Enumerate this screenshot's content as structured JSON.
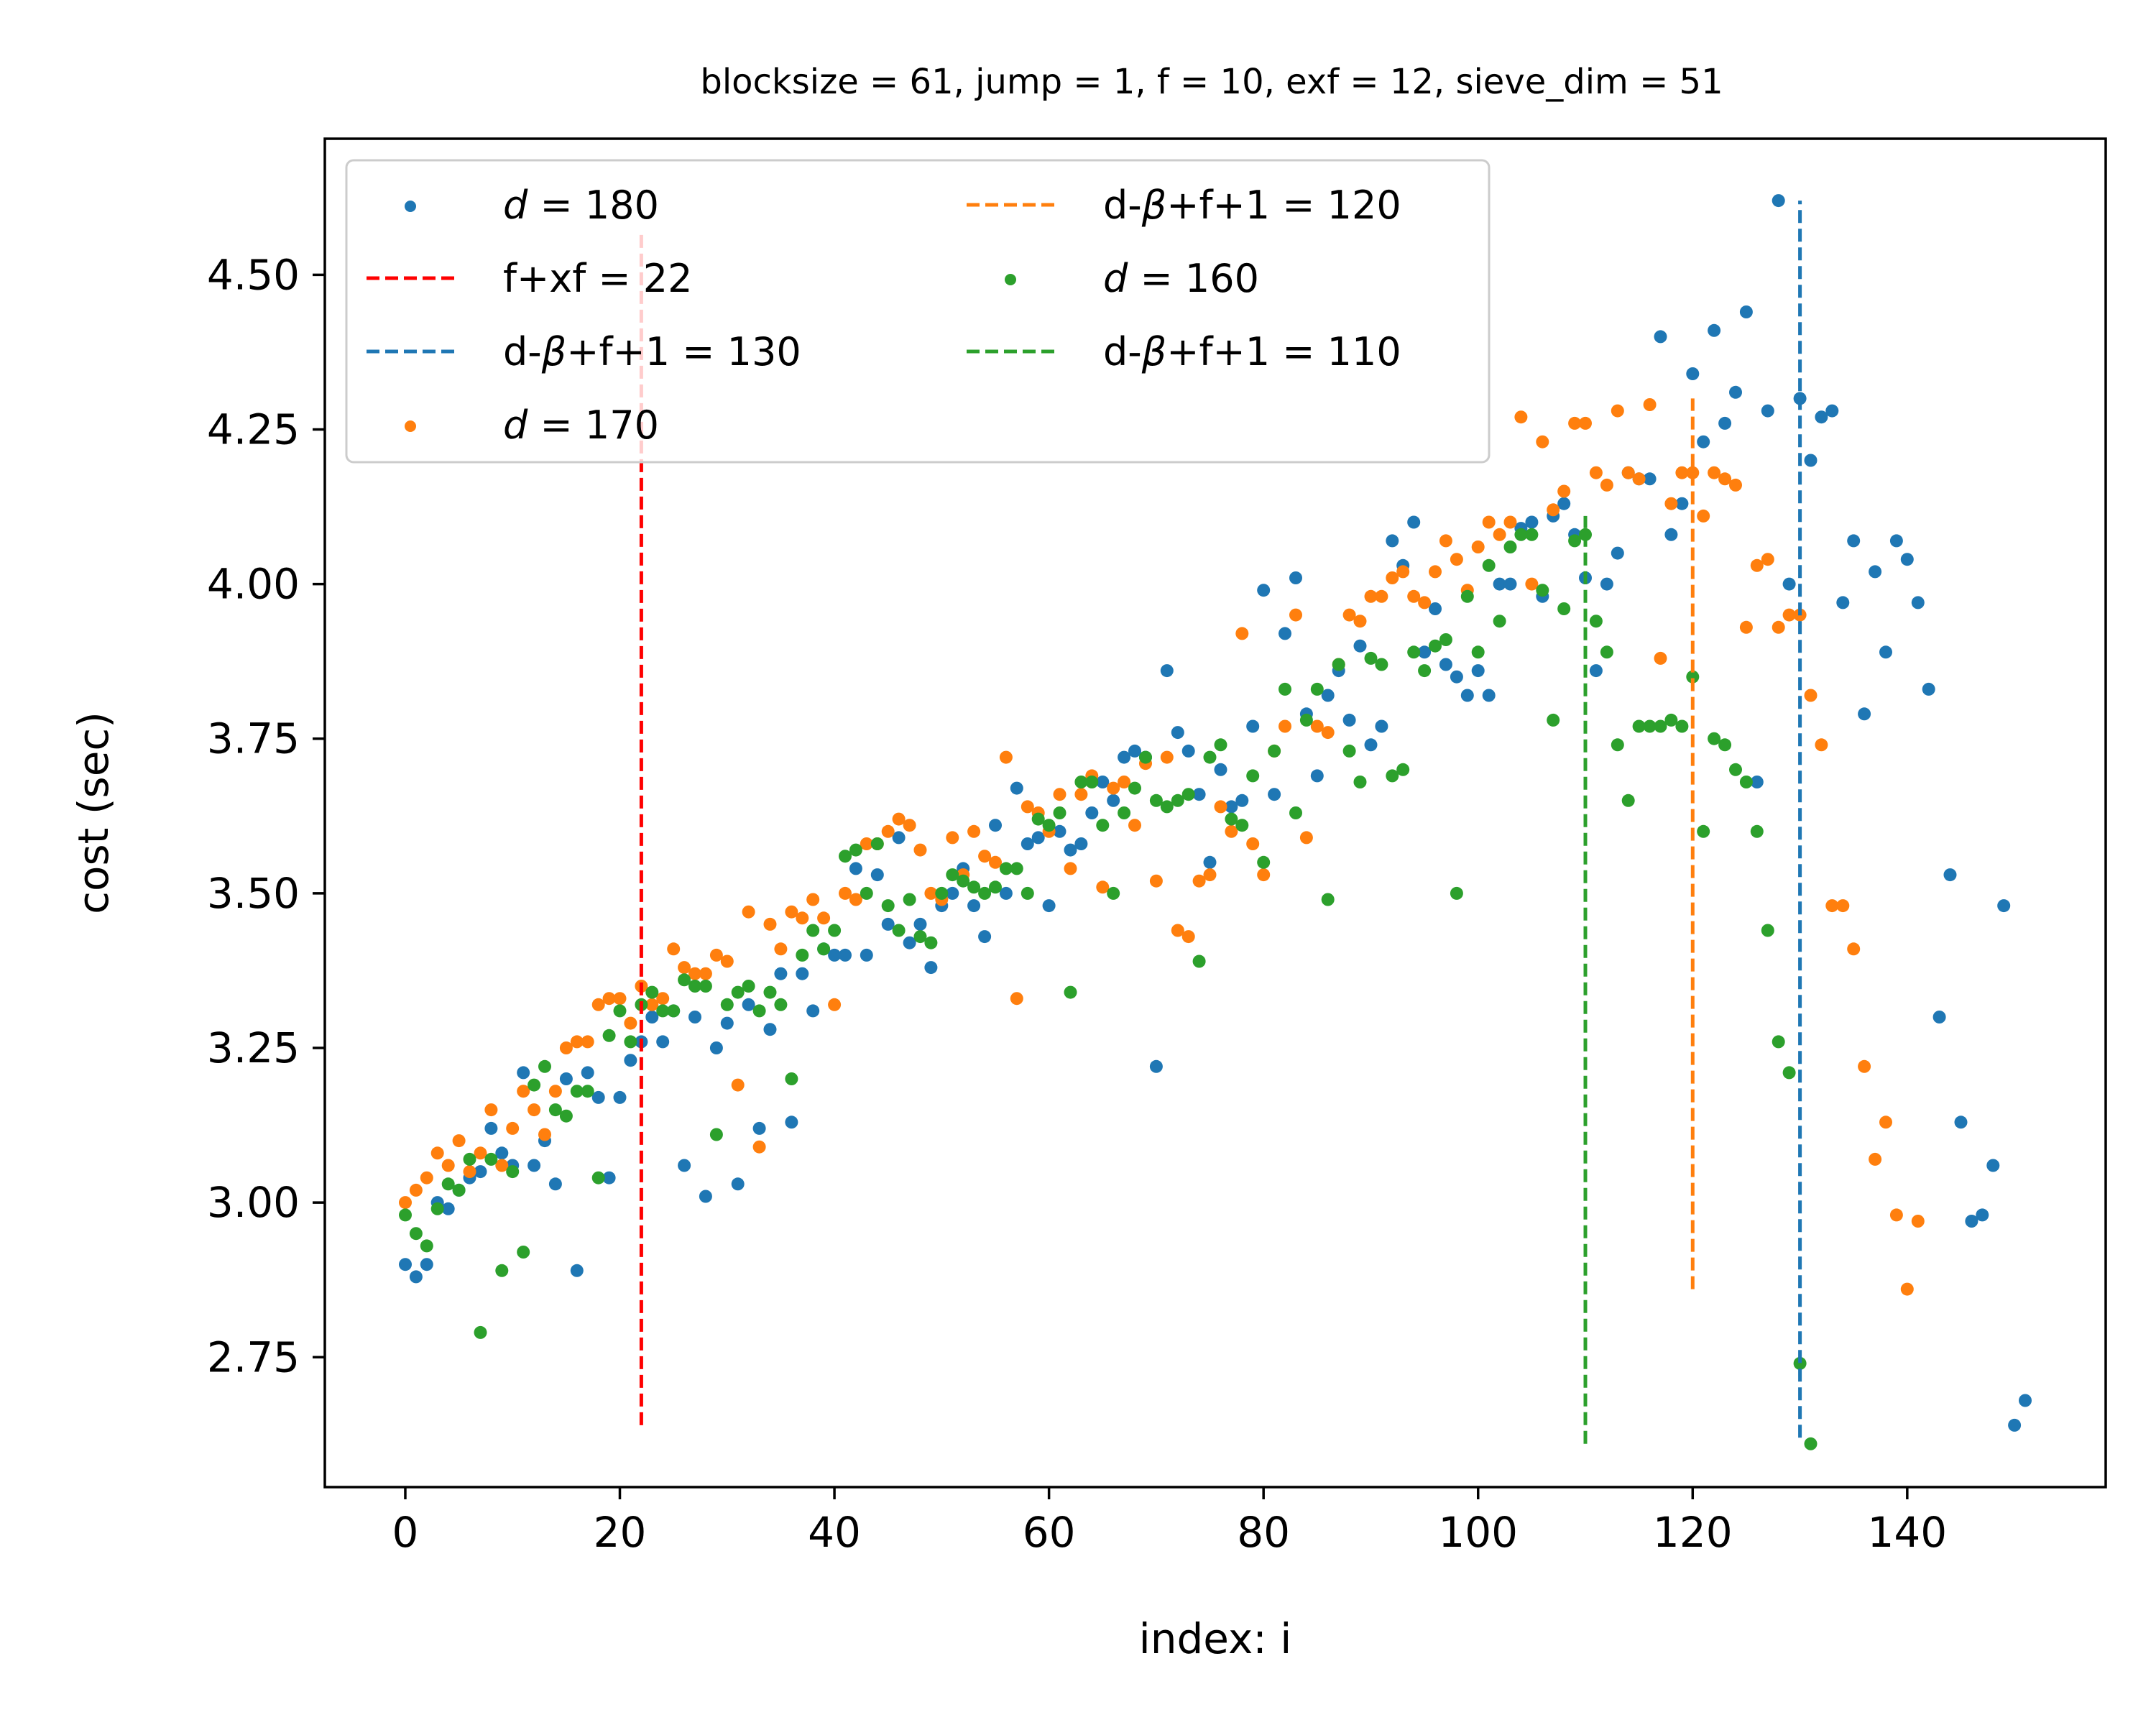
{
  "chart_data": {
    "type": "scatter",
    "title": "blocksize = 61, jump = 1, f = 10, exf = 12, sieve_dim = 51",
    "xlabel": "index: i",
    "ylabel": "cost (sec)",
    "xlim": [
      -7.5,
      158.5
    ],
    "ylim": [
      2.54,
      4.72
    ],
    "xticks": [
      0,
      20,
      40,
      60,
      80,
      100,
      120,
      140
    ],
    "yticks": [
      2.75,
      3.0,
      3.25,
      3.5,
      3.75,
      4.0,
      4.25,
      4.5
    ],
    "ytick_labels": [
      "2.75",
      "3.00",
      "3.25",
      "3.50",
      "3.75",
      "4.00",
      "4.25",
      "4.50"
    ],
    "grid": false,
    "legend_placement": "upper-left, two columns",
    "legend_entries": [
      {
        "kind": "scatter",
        "prefix": "d",
        "text": " = 180",
        "color": "#1f77b4"
      },
      {
        "kind": "line",
        "text": "f+xf = 22",
        "color": "#ff0000"
      },
      {
        "kind": "line",
        "prefix": "d-",
        "beta": "β",
        "text": "+f+1 = 130",
        "color": "#1f77b4"
      },
      {
        "kind": "scatter",
        "prefix": "d",
        "text": " = 170",
        "color": "#ff7f0e"
      },
      {
        "kind": "line",
        "prefix": "d-",
        "beta": "β",
        "text": "+f+1 = 120",
        "color": "#ff7f0e"
      },
      {
        "kind": "scatter",
        "prefix": "d",
        "text": " = 160",
        "color": "#2ca02c"
      },
      {
        "kind": "line",
        "prefix": "d-",
        "beta": "β",
        "text": "+f+1 = 110",
        "color": "#2ca02c"
      }
    ],
    "vlines": [
      {
        "x": 22,
        "ymin": 2.64,
        "ymax": 4.57,
        "color": "#ff0000"
      },
      {
        "x": 130,
        "ymin": 2.62,
        "ymax": 4.62,
        "color": "#1f77b4"
      },
      {
        "x": 120,
        "ymin": 2.86,
        "ymax": 4.3,
        "color": "#ff7f0e"
      },
      {
        "x": 110,
        "ymin": 2.61,
        "ymax": 4.11,
        "color": "#2ca02c"
      }
    ],
    "series": [
      {
        "name": "d = 180",
        "color": "#1f77b4",
        "x": [
          0,
          1,
          2,
          3,
          4,
          5,
          6,
          7,
          8,
          9,
          10,
          11,
          12,
          13,
          14,
          15,
          16,
          17,
          18,
          19,
          20,
          21,
          22,
          23,
          24,
          25,
          26,
          27,
          28,
          29,
          30,
          31,
          32,
          33,
          34,
          35,
          36,
          37,
          38,
          39,
          40,
          41,
          42,
          43,
          44,
          45,
          46,
          47,
          48,
          49,
          50,
          51,
          52,
          53,
          54,
          55,
          56,
          57,
          58,
          59,
          60,
          61,
          62,
          63,
          64,
          65,
          66,
          67,
          68,
          69,
          70,
          71,
          72,
          73,
          74,
          75,
          76,
          77,
          78,
          79,
          80,
          81,
          82,
          83,
          84,
          85,
          86,
          87,
          88,
          89,
          90,
          91,
          92,
          93,
          94,
          95,
          96,
          97,
          98,
          99,
          100,
          101,
          102,
          103,
          104,
          105,
          106,
          107,
          108,
          109,
          110,
          111,
          112,
          113,
          114,
          115,
          116,
          117,
          118,
          119,
          120,
          121,
          122,
          123,
          124,
          125,
          126,
          127,
          128,
          129,
          130,
          131,
          132,
          133,
          134,
          135,
          136,
          137,
          138,
          139,
          140,
          141,
          142,
          143,
          144,
          145,
          146,
          147,
          148,
          149,
          150,
          151
        ],
        "y": [
          2.9,
          2.88,
          2.9,
          3.0,
          2.99,
          3.02,
          3.04,
          3.05,
          3.12,
          3.08,
          3.06,
          3.21,
          3.06,
          3.1,
          3.03,
          3.2,
          2.89,
          3.21,
          3.17,
          3.04,
          3.17,
          3.23,
          3.26,
          3.3,
          3.26,
          3.31,
          3.06,
          3.3,
          3.01,
          3.25,
          3.29,
          3.03,
          3.32,
          3.12,
          3.28,
          3.37,
          3.13,
          3.37,
          3.31,
          3.41,
          3.4,
          3.4,
          3.54,
          3.4,
          3.53,
          3.45,
          3.59,
          3.42,
          3.45,
          3.38,
          3.48,
          3.5,
          3.54,
          3.48,
          3.43,
          3.61,
          3.5,
          3.67,
          3.58,
          3.59,
          3.48,
          3.6,
          3.57,
          3.58,
          3.63,
          3.68,
          3.65,
          3.72,
          3.73,
          3.72,
          3.22,
          3.86,
          3.76,
          3.73,
          3.66,
          3.55,
          3.7,
          3.64,
          3.65,
          3.77,
          3.99,
          3.66,
          3.92,
          4.01,
          3.79,
          3.69,
          3.82,
          3.86,
          3.78,
          3.9,
          3.74,
          3.77,
          4.07,
          4.03,
          4.1,
          3.89,
          3.96,
          3.87,
          3.85,
          3.82,
          3.86,
          3.82,
          4.0,
          4.0,
          4.09,
          4.1,
          3.98,
          4.11,
          4.13,
          4.08,
          4.01,
          3.86,
          4.0,
          4.05,
          4.18,
          4.17,
          4.17,
          4.4,
          4.08,
          4.13,
          4.34,
          4.23,
          4.41,
          4.26,
          4.31,
          4.44,
          3.68,
          4.28,
          4.62,
          4.0,
          4.3,
          4.2,
          4.27,
          4.28,
          3.97,
          4.07,
          3.79,
          4.02,
          3.89,
          4.07,
          4.04,
          3.97,
          3.83,
          3.3,
          3.53,
          3.13,
          2.97,
          2.98,
          3.06,
          3.48,
          2.64,
          2.68
        ]
      },
      {
        "name": "d = 170",
        "color": "#ff7f0e",
        "x": [
          0,
          1,
          2,
          3,
          4,
          5,
          6,
          7,
          8,
          9,
          10,
          11,
          12,
          13,
          14,
          15,
          16,
          17,
          18,
          19,
          20,
          21,
          22,
          23,
          24,
          25,
          26,
          27,
          28,
          29,
          30,
          31,
          32,
          33,
          34,
          35,
          36,
          37,
          38,
          39,
          40,
          41,
          42,
          43,
          44,
          45,
          46,
          47,
          48,
          49,
          50,
          51,
          52,
          53,
          54,
          55,
          56,
          57,
          58,
          59,
          60,
          61,
          62,
          63,
          64,
          65,
          66,
          67,
          68,
          69,
          70,
          71,
          72,
          73,
          74,
          75,
          76,
          77,
          78,
          79,
          80,
          81,
          82,
          83,
          84,
          85,
          86,
          87,
          88,
          89,
          90,
          91,
          92,
          93,
          94,
          95,
          96,
          97,
          98,
          99,
          100,
          101,
          102,
          103,
          104,
          105,
          106,
          107,
          108,
          109,
          110,
          111,
          112,
          113,
          114,
          115,
          116,
          117,
          118,
          119,
          120,
          121,
          122,
          123,
          124,
          125,
          126,
          127,
          128,
          129,
          130,
          131,
          132,
          133,
          134,
          135,
          136,
          137,
          138,
          139,
          140,
          141
        ],
        "y": [
          3.0,
          3.02,
          3.04,
          3.08,
          3.06,
          3.1,
          3.05,
          3.08,
          3.15,
          3.06,
          3.12,
          3.18,
          3.15,
          3.11,
          3.18,
          3.25,
          3.26,
          3.26,
          3.32,
          3.33,
          3.33,
          3.29,
          3.35,
          3.32,
          3.33,
          3.41,
          3.38,
          3.37,
          3.37,
          3.4,
          3.39,
          3.19,
          3.47,
          3.09,
          3.45,
          3.41,
          3.47,
          3.46,
          3.49,
          3.46,
          3.32,
          3.5,
          3.49,
          3.58,
          3.58,
          3.6,
          3.62,
          3.61,
          3.57,
          3.5,
          3.49,
          3.59,
          3.53,
          3.6,
          3.56,
          3.55,
          3.72,
          3.33,
          3.64,
          3.63,
          3.6,
          3.66,
          3.54,
          3.66,
          3.69,
          3.51,
          3.67,
          3.68,
          3.61,
          3.71,
          3.52,
          3.72,
          3.44,
          3.43,
          3.52,
          3.53,
          3.64,
          3.6,
          3.92,
          3.58,
          3.53,
          3.73,
          3.77,
          3.95,
          3.59,
          3.77,
          3.76,
          3.87,
          3.95,
          3.94,
          3.98,
          3.98,
          4.01,
          4.02,
          3.98,
          3.97,
          4.02,
          4.07,
          4.04,
          3.99,
          4.06,
          4.1,
          4.08,
          4.1,
          4.27,
          4.0,
          4.23,
          4.12,
          4.15,
          4.26,
          4.26,
          4.18,
          4.16,
          4.28,
          4.18,
          4.17,
          4.29,
          3.88,
          4.13,
          4.18,
          4.18,
          4.11,
          4.18,
          4.17,
          4.16,
          3.93,
          4.03,
          4.04,
          3.93,
          3.95,
          3.95,
          3.82,
          3.74,
          3.48,
          3.48,
          3.41,
          3.22,
          3.07,
          3.13,
          2.98,
          2.86,
          2.97
        ]
      },
      {
        "name": "d = 160",
        "color": "#2ca02c",
        "x": [
          0,
          1,
          2,
          3,
          4,
          5,
          6,
          7,
          8,
          9,
          10,
          11,
          12,
          13,
          14,
          15,
          16,
          17,
          18,
          19,
          20,
          21,
          22,
          23,
          24,
          25,
          26,
          27,
          28,
          29,
          30,
          31,
          32,
          33,
          34,
          35,
          36,
          37,
          38,
          39,
          40,
          41,
          42,
          43,
          44,
          45,
          46,
          47,
          48,
          49,
          50,
          51,
          52,
          53,
          54,
          55,
          56,
          57,
          58,
          59,
          60,
          61,
          62,
          63,
          64,
          65,
          66,
          67,
          68,
          69,
          70,
          71,
          72,
          73,
          74,
          75,
          76,
          77,
          78,
          79,
          80,
          81,
          82,
          83,
          84,
          85,
          86,
          87,
          88,
          89,
          90,
          91,
          92,
          93,
          94,
          95,
          96,
          97,
          98,
          99,
          100,
          101,
          102,
          103,
          104,
          105,
          106,
          107,
          108,
          109,
          110,
          111,
          112,
          113,
          114,
          115,
          116,
          117,
          118,
          119,
          120,
          121,
          122,
          123,
          124,
          125,
          126,
          127,
          128,
          129,
          130,
          131
        ],
        "y": [
          2.98,
          2.95,
          2.93,
          2.99,
          3.03,
          3.02,
          3.07,
          2.79,
          3.07,
          2.89,
          3.05,
          2.92,
          3.19,
          3.22,
          3.15,
          3.14,
          3.18,
          3.18,
          3.04,
          3.27,
          3.31,
          3.26,
          3.32,
          3.34,
          3.31,
          3.31,
          3.36,
          3.35,
          3.35,
          3.11,
          3.32,
          3.34,
          3.35,
          3.31,
          3.34,
          3.32,
          3.2,
          3.4,
          3.44,
          3.41,
          3.44,
          3.56,
          3.57,
          3.5,
          3.58,
          3.48,
          3.44,
          3.49,
          3.43,
          3.42,
          3.5,
          3.53,
          3.52,
          3.51,
          3.5,
          3.51,
          3.54,
          3.54,
          3.5,
          3.62,
          3.61,
          3.63,
          3.34,
          3.68,
          3.68,
          3.61,
          3.5,
          3.63,
          3.67,
          3.72,
          3.65,
          3.64,
          3.65,
          3.66,
          3.39,
          3.72,
          3.74,
          3.62,
          3.61,
          3.69,
          3.55,
          3.73,
          3.83,
          3.63,
          3.78,
          3.83,
          3.49,
          3.87,
          3.73,
          3.68,
          3.88,
          3.87,
          3.69,
          3.7,
          3.89,
          3.86,
          3.9,
          3.91,
          3.5,
          3.98,
          3.89,
          4.03,
          3.94,
          4.06,
          4.08,
          4.08,
          3.99,
          3.78,
          3.96,
          4.07,
          4.08,
          3.94,
          3.89,
          3.74,
          3.65,
          3.77,
          3.77,
          3.77,
          3.78,
          3.77,
          3.85,
          3.6,
          3.75,
          3.74,
          3.7,
          3.68,
          3.6,
          3.44,
          3.26,
          3.21,
          2.74,
          2.61
        ]
      }
    ]
  }
}
